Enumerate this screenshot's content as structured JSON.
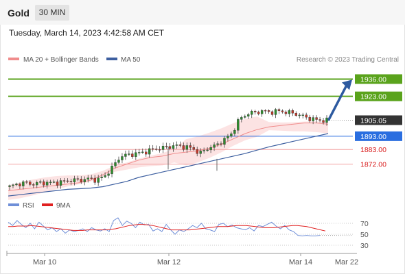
{
  "header": {
    "symbol": "Gold",
    "timeframe": "30 MIN",
    "datetime": "Tuesday, March 14, 2023 4:42:58 AM CET"
  },
  "legend": {
    "items": [
      {
        "label": "MA 20 + Bollinger Bands",
        "color": "#f08c8c"
      },
      {
        "label": "MA 50",
        "color": "#3d5fa0"
      }
    ],
    "credit": "Research © 2023 Trading Central"
  },
  "rsi_legend": {
    "items": [
      {
        "label": "RSI",
        "color": "#6f8fd8"
      },
      {
        "label": "9MA",
        "color": "#e02020"
      }
    ]
  },
  "colors": {
    "resistance": "#5aa31c",
    "support": "#f2a0a0",
    "pivot": "#2a6ee0",
    "current": "#333333",
    "arrow": "#2d5aa0",
    "candle_up": "#2e8b2e",
    "candle_down": "#c0392b"
  },
  "chart_data": [
    {
      "type": "candlestick",
      "title": "Gold 30 MIN",
      "y_range": [
        1846,
        1945
      ],
      "x_labels": [
        "Mar 10",
        "Mar 12",
        "Mar 14",
        "Mar 22"
      ],
      "current_price": "1905.05",
      "levels": [
        {
          "value": 1936.0,
          "label": "1936.00",
          "kind": "resistance"
        },
        {
          "value": 1923.0,
          "label": "1923.00",
          "kind": "resistance"
        },
        {
          "value": 1893.0,
          "label": "1893.00",
          "kind": "pivot"
        },
        {
          "value": 1883.0,
          "label": "1883.00",
          "kind": "support"
        },
        {
          "value": 1872.0,
          "label": "1872.00",
          "kind": "support"
        }
      ],
      "arrow": {
        "from": 1905.5,
        "to": 1934,
        "direction": "up"
      },
      "series": [
        {
          "name": "MA 20 + Bollinger Bands",
          "color": "#f08c8c",
          "values": [
            1852,
            1853,
            1854,
            1855,
            1856,
            1857,
            1858,
            1860,
            1864,
            1869,
            1872,
            1875,
            1877,
            1878,
            1880,
            1881,
            1882,
            1884,
            1887,
            1891,
            1895,
            1898,
            1900,
            1901,
            1902,
            1903,
            1903,
            1902
          ]
        },
        {
          "name": "MA 50",
          "color": "#3d5fa0",
          "values": [
            1848,
            1849,
            1850,
            1851,
            1852,
            1853,
            1853.5,
            1854,
            1855,
            1857,
            1859,
            1862,
            1864,
            1866,
            1868,
            1870,
            1872,
            1874,
            1876,
            1878,
            1880,
            1882.5,
            1885,
            1887,
            1889,
            1891,
            1893,
            1895
          ]
        },
        {
          "name": "Price",
          "color": "#2e8b2e",
          "values": [
            1855,
            1857,
            1858,
            1857,
            1858,
            1858,
            1858,
            1859,
            1860,
            1860,
            1861,
            1860,
            1863,
            1870,
            1878,
            1879,
            1880,
            1881,
            1883,
            1884,
            1885,
            1886,
            1885,
            1884,
            1880,
            1884,
            1886,
            1890,
            1895,
            1906,
            1910,
            1911,
            1912,
            1911,
            1912,
            1911,
            1910,
            1908,
            1906,
            1905,
            1905
          ]
        }
      ]
    },
    {
      "type": "line",
      "title": "RSI",
      "y_range": [
        20,
        90
      ],
      "y_ticks": [
        70,
        50,
        30
      ],
      "series": [
        {
          "name": "RSI",
          "color": "#6f8fd8",
          "values": [
            72,
            66,
            75,
            68,
            62,
            70,
            60,
            72,
            65,
            58,
            62,
            55,
            60,
            52,
            58,
            55,
            57,
            60,
            55,
            62,
            58,
            56,
            60,
            55,
            75,
            80,
            66,
            74,
            70,
            62,
            72,
            67,
            68,
            56,
            60,
            55,
            68,
            58,
            50,
            58,
            55,
            60,
            66,
            62,
            70,
            60,
            58,
            55,
            68,
            70,
            64,
            67,
            62,
            60,
            58,
            62,
            56,
            66,
            64,
            68,
            72,
            65,
            60,
            66,
            58,
            55,
            48,
            47,
            48,
            47,
            47,
            48
          ]
        },
        {
          "name": "9MA",
          "color": "#e02020",
          "values": [
            64,
            64,
            65,
            65,
            65,
            66,
            65,
            64,
            63,
            62,
            61,
            60,
            59,
            58,
            57,
            57,
            57,
            58,
            58,
            58,
            58,
            58,
            59,
            60,
            62,
            64,
            66,
            67,
            68,
            68,
            67,
            66,
            64,
            62,
            60,
            58,
            58,
            58,
            58,
            58,
            59,
            60,
            61,
            62,
            63,
            64,
            64,
            64,
            65,
            66,
            66,
            66,
            65,
            64,
            63,
            62,
            62,
            62,
            63,
            64,
            65,
            66,
            66,
            65,
            64,
            62,
            60,
            58,
            56
          ]
        }
      ]
    }
  ]
}
